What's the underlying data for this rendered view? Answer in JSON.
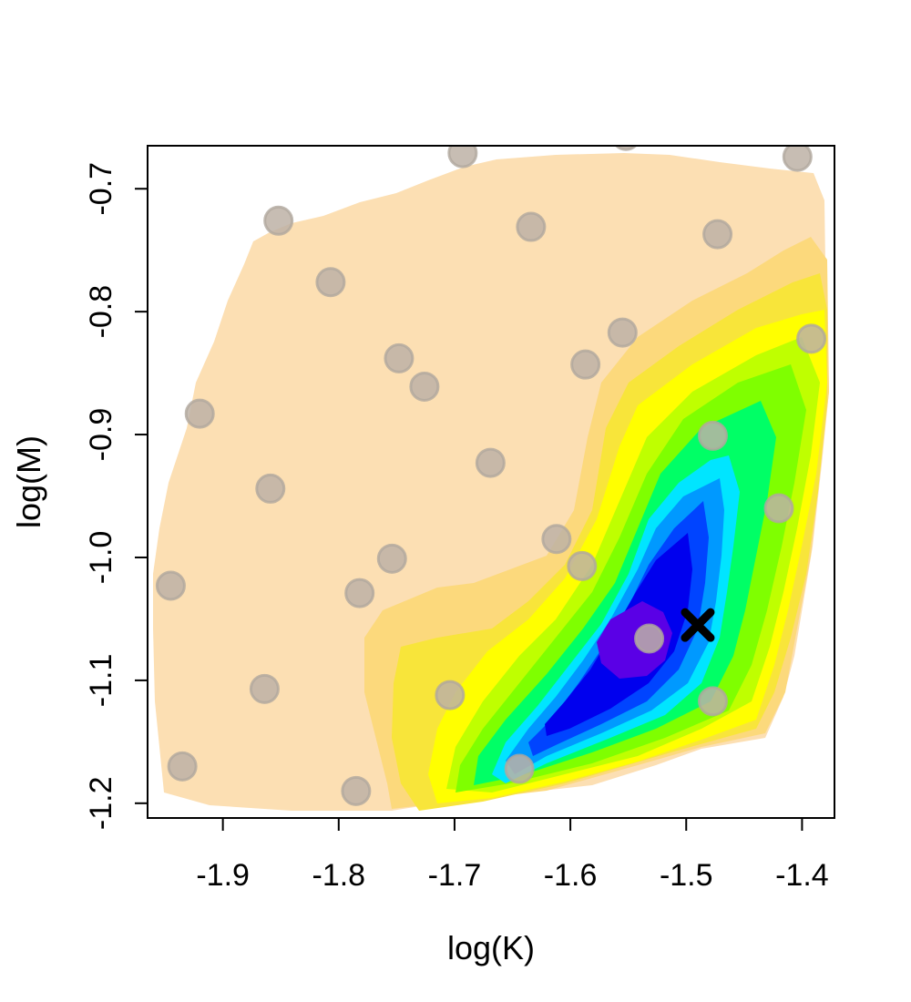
{
  "chart_data": {
    "type": "scatter",
    "title": "",
    "xlabel": "log(K)",
    "ylabel": "log(M)",
    "xlim": [
      -1.965,
      -1.372
    ],
    "ylim": [
      -1.212,
      -0.665
    ],
    "xticks": [
      -1.9,
      -1.8,
      -1.7,
      -1.6,
      -1.5,
      -1.4
    ],
    "xtick_labels": [
      "-1.9",
      "-1.8",
      "-1.7",
      "-1.6",
      "-1.5",
      "-1.4"
    ],
    "yticks": [
      -1.2,
      -1.1,
      -1.0,
      -0.9,
      -0.8,
      -0.7
    ],
    "ytick_labels": [
      "-1.2",
      "-1.1",
      "-1.0",
      "-0.9",
      "-0.8",
      "-0.7"
    ],
    "grid": false,
    "legend": "none",
    "colors": {
      "background_surface": "#FCDFB3",
      "level_1": "#FCD97C",
      "level_2": "#F8E53A",
      "level_3": "#FFFF00",
      "level_4": "#BFFF00",
      "level_5": "#7FFF00",
      "level_6": "#00FF66",
      "level_7": "#00E5FF",
      "level_8": "#0099FF",
      "level_9": "#0044FF",
      "level_10": "#0000EE",
      "level_11": "#5A00E6",
      "points": "#BDB2A6",
      "points_edge": "#B0A89E",
      "best_marker": "#000000"
    },
    "points": [
      {
        "x": -1.552,
        "y": -0.657
      },
      {
        "x": -1.693,
        "y": -0.671
      },
      {
        "x": -1.404,
        "y": -0.674
      },
      {
        "x": -1.852,
        "y": -0.726
      },
      {
        "x": -1.634,
        "y": -0.731
      },
      {
        "x": -1.473,
        "y": -0.737
      },
      {
        "x": -1.807,
        "y": -0.776
      },
      {
        "x": -1.555,
        "y": -0.817
      },
      {
        "x": -1.392,
        "y": -0.822
      },
      {
        "x": -1.748,
        "y": -0.838
      },
      {
        "x": -1.587,
        "y": -0.843
      },
      {
        "x": -1.726,
        "y": -0.861
      },
      {
        "x": -1.92,
        "y": -0.883
      },
      {
        "x": -1.477,
        "y": -0.901
      },
      {
        "x": -1.669,
        "y": -0.923
      },
      {
        "x": -1.859,
        "y": -0.944
      },
      {
        "x": -1.42,
        "y": -0.96
      },
      {
        "x": -1.612,
        "y": -0.985
      },
      {
        "x": -1.754,
        "y": -1.001
      },
      {
        "x": -1.59,
        "y": -1.007
      },
      {
        "x": -1.945,
        "y": -1.023
      },
      {
        "x": -1.782,
        "y": -1.029
      },
      {
        "x": -1.532,
        "y": -1.066
      },
      {
        "x": -1.864,
        "y": -1.107
      },
      {
        "x": -1.704,
        "y": -1.112
      },
      {
        "x": -1.477,
        "y": -1.117
      },
      {
        "x": -1.644,
        "y": -1.172
      },
      {
        "x": -1.935,
        "y": -1.17
      },
      {
        "x": -1.785,
        "y": -1.19
      }
    ],
    "best": {
      "x": -1.49,
      "y": -1.055
    }
  }
}
